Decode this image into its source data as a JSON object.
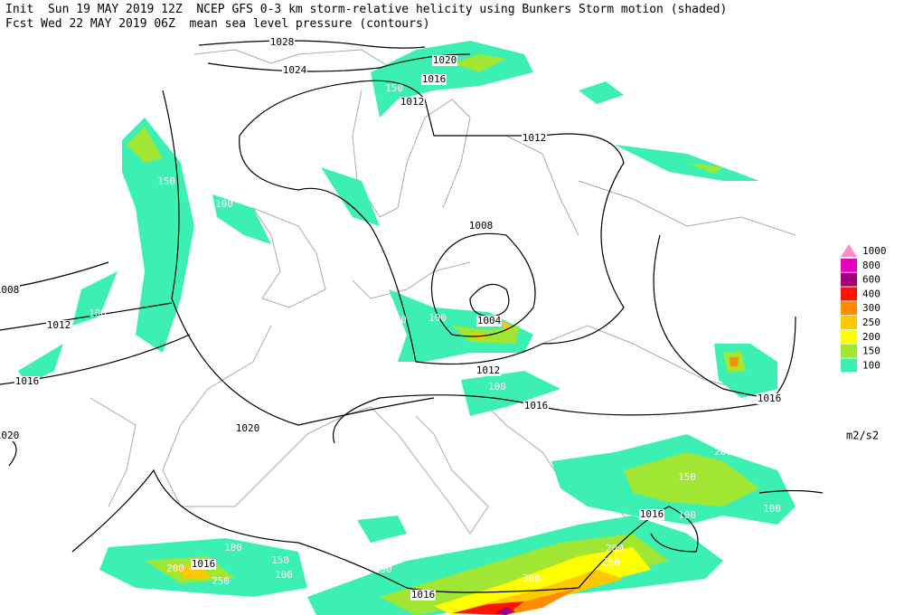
{
  "header": {
    "line1": "Init  Sun 19 MAY 2019 12Z  NCEP GFS 0-3 km storm-relative helicity using Bunkers Storm motion (shaded)",
    "line2": "Fcst Wed 22 MAY 2019 06Z  mean sea level pressure (contours)"
  },
  "legend": {
    "levels": [
      {
        "label": "1000",
        "color": "#ff8ac8"
      },
      {
        "label": "800",
        "color": "#e600c0"
      },
      {
        "label": "600",
        "color": "#a0007a"
      },
      {
        "label": "400",
        "color": "#ff1400"
      },
      {
        "label": "300",
        "color": "#ff8c00"
      },
      {
        "label": "250",
        "color": "#ffc800"
      },
      {
        "label": "200",
        "color": "#ffff00"
      },
      {
        "label": "150",
        "color": "#a0e632"
      },
      {
        "label": "100",
        "color": "#3cf0b4"
      }
    ],
    "unit": "m2/s2"
  },
  "contour_labels": [
    "1028",
    "1024",
    "1020",
    "1016",
    "1012",
    "1012",
    "1008",
    "1004",
    "1012",
    "1016",
    "1016",
    "1020",
    "1012",
    "1016",
    "1008",
    "1020",
    "1016",
    "1016",
    "1016"
  ],
  "shade_labels": [
    "100",
    "150",
    "100",
    "100",
    "150",
    "100",
    "100",
    "100",
    "100",
    "100",
    "100",
    "100",
    "100",
    "200",
    "150",
    "100",
    "150",
    "200",
    "250",
    "300",
    "150",
    "200",
    "250",
    "100",
    "100",
    "100"
  ]
}
